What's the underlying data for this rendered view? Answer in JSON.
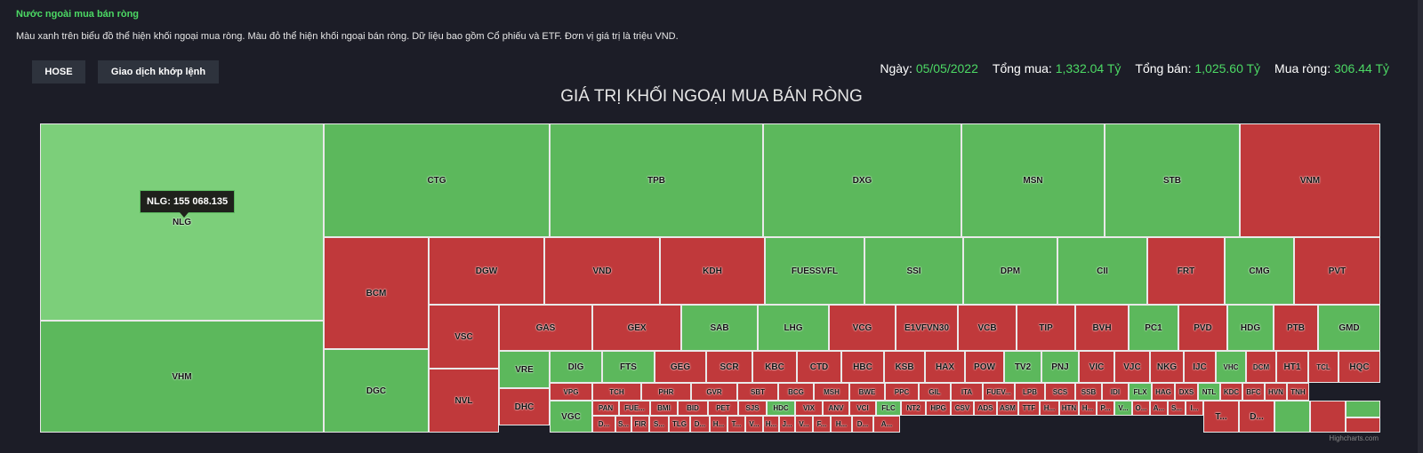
{
  "header": {
    "title": "Nước ngoài mua bán ròng",
    "description": "Màu xanh trên biểu đồ thể hiện khối ngoại mua ròng. Màu đỏ thể hiện khối ngoại bán ròng. Dữ liệu bao gồm Cổ phiếu và ETF. Đơn vị giá trị là triệu VND."
  },
  "toolbar": {
    "exchange_label": "HOSE",
    "trade_type_label": "Giao dịch khớp lệnh"
  },
  "summary": {
    "date_label": "Ngày:",
    "date_value": "05/05/2022",
    "buy_label": "Tổng mua:",
    "buy_value": "1,332.04 Tỷ",
    "sell_label": "Tổng bán:",
    "sell_value": "1,025.60 Tỷ",
    "net_label": "Mua ròng:",
    "net_value": "306.44 Tỷ"
  },
  "colors": {
    "net_buy": "#5cb85c",
    "net_buy_highlight": "#7ccf7a",
    "net_sell": "#c0393b",
    "background": "#1c1d27",
    "accent_text": "#4cd964"
  },
  "tooltip": {
    "text": "NLG: 155 068.135"
  },
  "credits": "Highcharts.com",
  "chart_data": {
    "type": "treemap",
    "title": "GIÁ TRỊ KHỐI NGOẠI MUA BÁN RÒNG",
    "hovered": "NLG",
    "tiles": [
      {
        "name": "NLG",
        "side": "buy"
      },
      {
        "name": "VHM",
        "side": "buy"
      },
      {
        "name": "CTG",
        "side": "buy"
      },
      {
        "name": "TPB",
        "side": "buy"
      },
      {
        "name": "DXG",
        "side": "buy"
      },
      {
        "name": "MSN",
        "side": "buy"
      },
      {
        "name": "STB",
        "side": "buy"
      },
      {
        "name": "VNM",
        "side": "sell"
      },
      {
        "name": "BCM",
        "side": "sell"
      },
      {
        "name": "DGC",
        "side": "buy"
      },
      {
        "name": "DGW",
        "side": "sell"
      },
      {
        "name": "VND",
        "side": "sell"
      },
      {
        "name": "KDH",
        "side": "sell"
      },
      {
        "name": "FUESSVFL",
        "side": "buy"
      },
      {
        "name": "SSI",
        "side": "buy"
      },
      {
        "name": "DPM",
        "side": "buy"
      },
      {
        "name": "CII",
        "side": "buy"
      },
      {
        "name": "FRT",
        "side": "sell"
      },
      {
        "name": "CMG",
        "side": "buy"
      },
      {
        "name": "PVT",
        "side": "sell"
      },
      {
        "name": "VSC",
        "side": "sell"
      },
      {
        "name": "NVL",
        "side": "sell"
      },
      {
        "name": "GAS",
        "side": "sell"
      },
      {
        "name": "GEX",
        "side": "sell"
      },
      {
        "name": "SAB",
        "side": "buy"
      },
      {
        "name": "LHG",
        "side": "buy"
      },
      {
        "name": "VCG",
        "side": "sell"
      },
      {
        "name": "E1VFVN30",
        "side": "sell"
      },
      {
        "name": "VCB",
        "side": "sell"
      },
      {
        "name": "TIP",
        "side": "sell"
      },
      {
        "name": "BVH",
        "side": "sell"
      },
      {
        "name": "PC1",
        "side": "buy"
      },
      {
        "name": "PVD",
        "side": "sell"
      },
      {
        "name": "HDG",
        "side": "buy"
      },
      {
        "name": "PTB",
        "side": "sell"
      },
      {
        "name": "GMD",
        "side": "buy"
      },
      {
        "name": "VRE",
        "side": "buy"
      },
      {
        "name": "DHC",
        "side": "sell"
      },
      {
        "name": "DIG",
        "side": "buy"
      },
      {
        "name": "FTS",
        "side": "buy"
      },
      {
        "name": "GEG",
        "side": "sell"
      },
      {
        "name": "SCR",
        "side": "sell"
      },
      {
        "name": "KBC",
        "side": "sell"
      },
      {
        "name": "CTD",
        "side": "sell"
      },
      {
        "name": "HBC",
        "side": "sell"
      },
      {
        "name": "KSB",
        "side": "sell"
      },
      {
        "name": "HAX",
        "side": "sell"
      },
      {
        "name": "POW",
        "side": "sell"
      },
      {
        "name": "TV2",
        "side": "buy"
      },
      {
        "name": "PNJ",
        "side": "buy"
      },
      {
        "name": "VIC",
        "side": "sell"
      },
      {
        "name": "VJC",
        "side": "sell"
      },
      {
        "name": "NKG",
        "side": "sell"
      },
      {
        "name": "IJC",
        "side": "sell"
      },
      {
        "name": "VHC",
        "side": "buy"
      },
      {
        "name": "DCM",
        "side": "sell"
      },
      {
        "name": "HT1",
        "side": "sell"
      },
      {
        "name": "TCL",
        "side": "sell"
      },
      {
        "name": "HQC",
        "side": "sell"
      },
      {
        "name": "VPG",
        "side": "sell"
      },
      {
        "name": "TCH",
        "side": "sell"
      },
      {
        "name": "PHR",
        "side": "sell"
      },
      {
        "name": "GVR",
        "side": "sell"
      },
      {
        "name": "SBT",
        "side": "sell"
      },
      {
        "name": "BCG",
        "side": "sell"
      },
      {
        "name": "MSH",
        "side": "sell"
      },
      {
        "name": "BWE",
        "side": "sell"
      },
      {
        "name": "PPC",
        "side": "sell"
      },
      {
        "name": "GIL",
        "side": "sell"
      },
      {
        "name": "ITA",
        "side": "sell"
      },
      {
        "name": "FUEV...",
        "side": "sell"
      },
      {
        "name": "LPB",
        "side": "sell"
      },
      {
        "name": "SCS",
        "side": "sell"
      },
      {
        "name": "SSB",
        "side": "sell"
      },
      {
        "name": "IDI",
        "side": "sell"
      },
      {
        "name": "FLX",
        "side": "buy"
      },
      {
        "name": "HAG",
        "side": "sell"
      },
      {
        "name": "DXS",
        "side": "sell"
      },
      {
        "name": "NTL",
        "side": "buy"
      },
      {
        "name": "KDC",
        "side": "sell"
      },
      {
        "name": "BFC",
        "side": "sell"
      },
      {
        "name": "HVN",
        "side": "sell"
      },
      {
        "name": "TNH",
        "side": "sell"
      },
      {
        "name": "VGC",
        "side": "buy"
      },
      {
        "name": "PAN",
        "side": "sell"
      },
      {
        "name": "FUE...",
        "side": "sell"
      },
      {
        "name": "BMI",
        "side": "sell"
      },
      {
        "name": "BID",
        "side": "sell"
      },
      {
        "name": "PET",
        "side": "sell"
      },
      {
        "name": "SJS",
        "side": "sell"
      },
      {
        "name": "HDC",
        "side": "buy"
      },
      {
        "name": "VIX",
        "side": "sell"
      },
      {
        "name": "ANV",
        "side": "sell"
      },
      {
        "name": "VCI",
        "side": "sell"
      },
      {
        "name": "FLC",
        "side": "buy"
      },
      {
        "name": "NT2",
        "side": "sell"
      },
      {
        "name": "HPG",
        "side": "sell"
      },
      {
        "name": "CSV",
        "side": "sell"
      },
      {
        "name": "ADS",
        "side": "sell"
      },
      {
        "name": "ASM",
        "side": "sell"
      },
      {
        "name": "TTF",
        "side": "sell"
      },
      {
        "name": "H...",
        "side": "sell"
      },
      {
        "name": "HTN",
        "side": "sell"
      },
      {
        "name": "H...",
        "side": "sell"
      },
      {
        "name": "P...",
        "side": "sell"
      },
      {
        "name": "V...",
        "side": "buy"
      },
      {
        "name": "O...",
        "side": "sell"
      },
      {
        "name": "A...",
        "side": "sell"
      },
      {
        "name": "S...",
        "side": "sell"
      },
      {
        "name": "I...",
        "side": "sell"
      },
      {
        "name": "D...",
        "side": "sell"
      },
      {
        "name": "S...",
        "side": "sell"
      },
      {
        "name": "FIR",
        "side": "sell"
      },
      {
        "name": "S...",
        "side": "sell"
      },
      {
        "name": "TLG",
        "side": "sell"
      },
      {
        "name": "D...",
        "side": "sell"
      },
      {
        "name": "H...",
        "side": "sell"
      },
      {
        "name": "T...",
        "side": "sell"
      },
      {
        "name": "V...",
        "side": "sell"
      },
      {
        "name": "H...",
        "side": "sell"
      },
      {
        "name": "J...",
        "side": "sell"
      },
      {
        "name": "V...",
        "side": "sell"
      },
      {
        "name": "F...",
        "side": "sell"
      },
      {
        "name": "H...",
        "side": "sell"
      },
      {
        "name": "D...",
        "side": "sell"
      },
      {
        "name": "A...",
        "side": "sell"
      },
      {
        "name": "T...",
        "side": "sell"
      },
      {
        "name": "D...",
        "side": "sell"
      },
      {
        "name": "",
        "side": "buy"
      },
      {
        "name": "",
        "side": "sell"
      },
      {
        "name": "",
        "side": "buy"
      },
      {
        "name": "",
        "side": "sell"
      },
      {
        "name": "",
        "side": "buy"
      },
      {
        "name": "",
        "side": "sell"
      }
    ]
  }
}
